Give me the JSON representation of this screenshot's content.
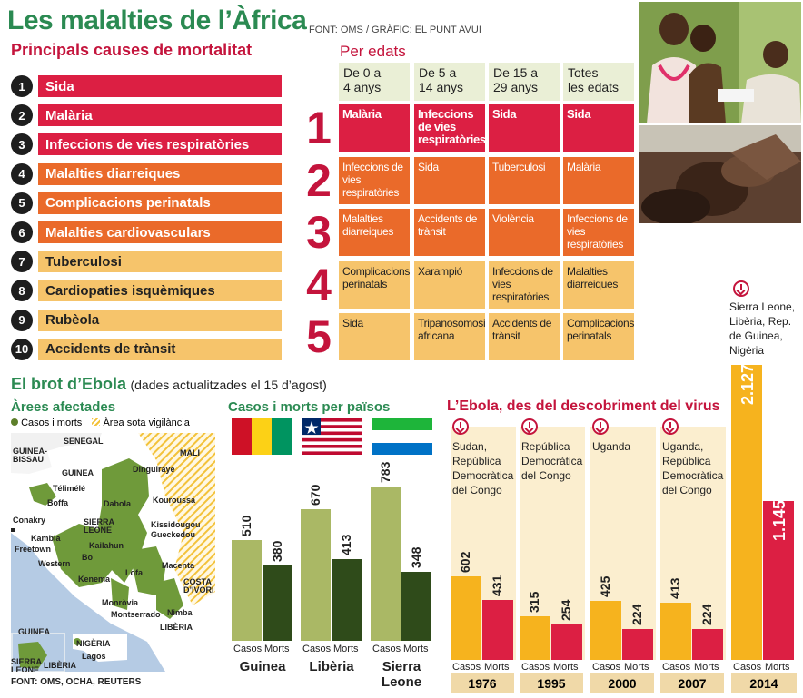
{
  "title": "Les malalties de l’Àfrica",
  "source_top": "FONT: OMS / GRÀFIC: EL PUNT AVUI",
  "causes": {
    "heading": "Principals causes de mortalitat",
    "items": [
      {
        "num": "1",
        "label": "Sida",
        "color": "#dc1f43",
        "text": "#ffffff"
      },
      {
        "num": "2",
        "label": "Malària",
        "color": "#dc1f43",
        "text": "#ffffff"
      },
      {
        "num": "3",
        "label": "Infeccions de vies respiratòries",
        "color": "#dc1f43",
        "text": "#ffffff"
      },
      {
        "num": "4",
        "label": "Malalties diarreiques",
        "color": "#ea6a2a",
        "text": "#ffffff"
      },
      {
        "num": "5",
        "label": "Complicacions perinatals",
        "color": "#ea6a2a",
        "text": "#ffffff"
      },
      {
        "num": "6",
        "label": "Malalties cardiovasculars",
        "color": "#ea6a2a",
        "text": "#ffffff"
      },
      {
        "num": "7",
        "label": "Tuberculosi",
        "color": "#f6c46b",
        "text": "#222222"
      },
      {
        "num": "8",
        "label": "Cardiopaties isquèmiques",
        "color": "#f6c46b",
        "text": "#222222"
      },
      {
        "num": "9",
        "label": "Rubèola",
        "color": "#f6c46b",
        "text": "#222222"
      },
      {
        "num": "10",
        "label": "Accidents de trànsit",
        "color": "#f6c46b",
        "text": "#222222"
      }
    ]
  },
  "ages": {
    "heading": "Per edats",
    "columns": [
      "De 0 a\n4 anys",
      "De 5 a\n14 anys",
      "De 15 a\n29 anys",
      "Totes\nles edats"
    ],
    "ranks": [
      "1",
      "2",
      "3",
      "4",
      "5"
    ],
    "rows": [
      [
        "Malària",
        "Infeccions de vies respiratòries",
        "Sida",
        "Sida"
      ],
      [
        "Infeccions de vies respiratòries",
        "Sida",
        "Tuberculosi",
        "Malària"
      ],
      [
        "Malalties diarreiques",
        "Accidents de trànsit",
        "Violència",
        "Infeccions de vies respiratòries"
      ],
      [
        "Complicacions perinatals",
        "Xarampió",
        "Infeccions de vies respiratòries",
        "Malalties diarreiques"
      ],
      [
        "Sida",
        "Tripanosomosi africana",
        "Accidents de trànsit",
        "Complicacions perinatals"
      ]
    ],
    "row_colors": [
      "#dc1f43",
      "#ea6a2a",
      "#ea6a2a",
      "#f6c46b",
      "#f6c46b"
    ],
    "row_text": [
      "#ffffff",
      "#ffffff",
      "#ffffff",
      "#222222",
      "#222222"
    ]
  },
  "ebola": {
    "heading": "El brot d’Ebola",
    "note": "(dades actualitzades el 15 d’agost)"
  },
  "map": {
    "heading": "Àrees afectades",
    "legend_cases": "Casos i morts",
    "legend_watch": "Àrea sota vigilància",
    "labels": {
      "senegal": "SENEGAL",
      "guinea_bissau": "GUINEA-\nBISSAU",
      "mali": "MALI",
      "guinea": "GUINEA",
      "telimele": "Télimélé",
      "boffa": "Boffa",
      "dinguiraye": "Dinguiraye",
      "dabola": "Dabola",
      "kouroussa": "Kouroussa",
      "conakry": "Conakry",
      "sierra_leone": "SIERRA\nLEONE",
      "kissidougou": "Kissidougou",
      "gueckedou": "Gueckedou",
      "freetown": "Freetown",
      "kailahun": "Kailahun",
      "kambia": "Kambia",
      "bo": "Bo",
      "western": "Western",
      "kenema": "Kenema",
      "lofa": "Lofa",
      "macenta": "Macenta",
      "costa": "COSTA\nD’IVORI",
      "monrovia": "Monròvia",
      "montserrado": "Montserrado",
      "nimba": "Nimba",
      "liberia": "LIBÈRIA",
      "inset_guinea": "GUINEA",
      "inset_nigeria": "NIGÈRIA",
      "inset_lagos": "Lagos",
      "inset_sierra": "SIERRA\nLEONE",
      "inset_liberia": "LIBÈRIA"
    },
    "source": "FONT: OMS, OCHA, REUTERS"
  },
  "chart_data": [
    {
      "type": "bar",
      "title": "Casos i morts per països",
      "categories": [
        "Guinea",
        "Libèria",
        "Sierra\nLeone"
      ],
      "series": [
        {
          "name": "Casos",
          "values": [
            510,
            670,
            783
          ],
          "color": "#aab865"
        },
        {
          "name": "Morts",
          "values": [
            380,
            413,
            348
          ],
          "color": "#2f4b1a"
        }
      ],
      "series_labels": [
        "Casos",
        "Morts"
      ]
    },
    {
      "type": "bar",
      "title": "L’Ebola, des del descobriment del virus",
      "categories": [
        "1976",
        "1995",
        "2000",
        "2007",
        "2014"
      ],
      "annotations": [
        "Sudan,\nRepública\nDemocràtica\ndel Congo",
        "República\nDemocràtica\ndel Congo",
        "Uganda",
        "Uganda,\nRepública\nDemocràtica\ndel Congo",
        "Sierra Leone,\nLibèria, Rep.\nde Guinea,\nNigèria"
      ],
      "series": [
        {
          "name": "Casos",
          "values": [
            602,
            315,
            425,
            413,
            2127
          ],
          "labels": [
            "602",
            "315",
            "425",
            "413",
            "2.127"
          ],
          "color": "#f6b31e"
        },
        {
          "name": "Morts",
          "values": [
            431,
            254,
            224,
            224,
            1145
          ],
          "labels": [
            "431",
            "254",
            "224",
            "224",
            "1.145"
          ],
          "color": "#dc1f43"
        }
      ],
      "series_labels": [
        "Casos",
        "Morts"
      ]
    }
  ]
}
